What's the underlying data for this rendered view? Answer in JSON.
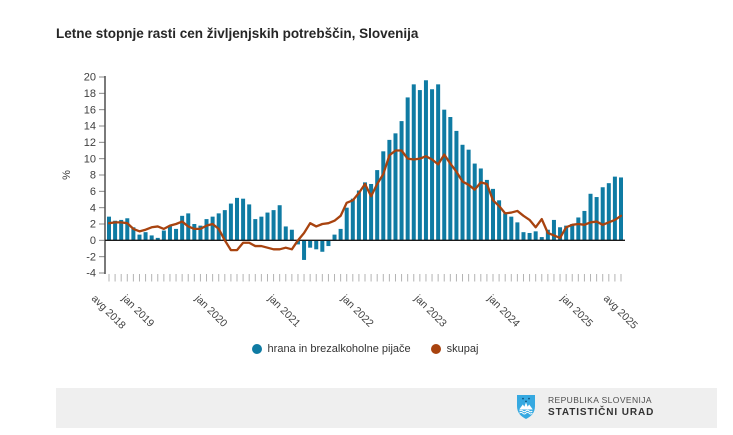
{
  "page": {
    "title": "Letne stopnje rasti cen življenjskih potrebščin, Slovenija"
  },
  "colors": {
    "bars": "#0f7ba3",
    "line": "#a8430f",
    "axis": "#333333",
    "tick": "#b3b3b3",
    "label_text": "#3f3f3f",
    "footer_bg": "#efefef",
    "coat_blue": "#36a9e1"
  },
  "legend": {
    "items": [
      {
        "label": "hrana in brezalkoholne pijače",
        "color": "#0f7ba3"
      },
      {
        "label": "skupaj",
        "color": "#a8430f"
      }
    ]
  },
  "footer": {
    "line1": "REPUBLIKA SLOVENIJA",
    "line2": "STATISTIČNI URAD"
  },
  "chart_data": {
    "type": "bar",
    "title": "Letne stopnje rasti cen življenjskih potrebščin, Slovenija",
    "ylabel": "%",
    "xlabel": "",
    "ylim": [
      -4,
      20
    ],
    "y_ticks": [
      20,
      18,
      16,
      14,
      12,
      10,
      8,
      6,
      4,
      2,
      0,
      -2,
      -4
    ],
    "grid": false,
    "legend_position": "bottom",
    "x_tick_labels": [
      {
        "index": 0,
        "label": "avg 2018"
      },
      {
        "index": 5,
        "label": "jan 2019"
      },
      {
        "index": 17,
        "label": "jan 2020"
      },
      {
        "index": 29,
        "label": "jan 2021"
      },
      {
        "index": 41,
        "label": "jan 2022"
      },
      {
        "index": 53,
        "label": "jan 2023"
      },
      {
        "index": 65,
        "label": "jan 2024"
      },
      {
        "index": 77,
        "label": "jan 2025"
      },
      {
        "index": 84,
        "label": "avg 2025"
      }
    ],
    "categories": [
      "avg 2018",
      "sep 2018",
      "okt 2018",
      "nov 2018",
      "dec 2018",
      "jan 2019",
      "feb 2019",
      "mar 2019",
      "apr 2019",
      "maj 2019",
      "jun 2019",
      "jul 2019",
      "avg 2019",
      "sep 2019",
      "okt 2019",
      "nov 2019",
      "dec 2019",
      "jan 2020",
      "feb 2020",
      "mar 2020",
      "apr 2020",
      "maj 2020",
      "jun 2020",
      "jul 2020",
      "avg 2020",
      "sep 2020",
      "okt 2020",
      "nov 2020",
      "dec 2020",
      "jan 2021",
      "feb 2021",
      "mar 2021",
      "apr 2021",
      "maj 2021",
      "jun 2021",
      "jul 2021",
      "avg 2021",
      "sep 2021",
      "okt 2021",
      "nov 2021",
      "dec 2021",
      "jan 2022",
      "feb 2022",
      "mar 2022",
      "apr 2022",
      "maj 2022",
      "jun 2022",
      "jul 2022",
      "avg 2022",
      "sep 2022",
      "okt 2022",
      "nov 2022",
      "dec 2022",
      "jan 2023",
      "feb 2023",
      "mar 2023",
      "apr 2023",
      "maj 2023",
      "jun 2023",
      "jul 2023",
      "avg 2023",
      "sep 2023",
      "okt 2023",
      "nov 2023",
      "dec 2023",
      "jan 2024",
      "feb 2024",
      "mar 2024",
      "apr 2024",
      "maj 2024",
      "jun 2024",
      "jul 2024",
      "avg 2024",
      "sep 2024",
      "okt 2024",
      "nov 2024",
      "dec 2024",
      "jan 2025",
      "feb 2025",
      "mar 2025",
      "apr 2025",
      "maj 2025",
      "jun 2025",
      "jul 2025",
      "avg 2025"
    ],
    "series": [
      {
        "name": "hrana in brezalkoholne pijače",
        "type": "bar",
        "color": "#0f7ba3",
        "values": [
          2.9,
          2.4,
          2.5,
          2.7,
          1.6,
          0.7,
          1.0,
          0.6,
          0.3,
          1.2,
          1.8,
          1.4,
          3.0,
          3.3,
          2.0,
          1.8,
          2.6,
          2.9,
          3.3,
          3.7,
          4.5,
          5.2,
          5.1,
          4.4,
          2.6,
          2.9,
          3.4,
          3.7,
          4.3,
          1.7,
          1.3,
          -0.5,
          -2.4,
          -0.9,
          -1.1,
          -1.4,
          -0.7,
          0.7,
          1.4,
          4.0,
          5.1,
          6.1,
          7.1,
          6.9,
          8.6,
          10.9,
          12.3,
          13.1,
          14.6,
          17.5,
          19.1,
          18.4,
          19.6,
          18.5,
          19.1,
          16.0,
          15.1,
          13.4,
          11.7,
          11.1,
          9.4,
          8.8,
          7.4,
          6.3,
          4.9,
          3.3,
          2.9,
          2.2,
          1.0,
          0.9,
          1.1,
          0.4,
          1.3,
          2.5,
          1.6,
          1.8,
          2.0,
          2.8,
          3.6,
          5.7,
          5.3,
          6.5,
          7.0,
          7.8,
          7.7
        ]
      },
      {
        "name": "skupaj",
        "type": "line",
        "color": "#a8430f",
        "values": [
          2.1,
          2.2,
          2.2,
          2.1,
          1.4,
          1.1,
          1.3,
          1.6,
          1.7,
          1.4,
          1.8,
          2.0,
          2.3,
          1.7,
          1.4,
          1.4,
          1.8,
          2.0,
          1.4,
          0.0,
          -1.2,
          -1.2,
          -0.3,
          -0.3,
          -0.7,
          -0.7,
          -0.9,
          -1.1,
          -1.1,
          -0.9,
          -1.1,
          0.0,
          0.9,
          2.1,
          1.7,
          2.0,
          2.1,
          2.4,
          3.0,
          4.6,
          4.9,
          5.8,
          6.9,
          5.4,
          6.9,
          8.1,
          10.4,
          11.0,
          11.0,
          10.0,
          9.9,
          10.0,
          10.3,
          9.9,
          9.3,
          10.5,
          9.4,
          8.4,
          7.2,
          6.8,
          6.2,
          7.1,
          6.9,
          4.9,
          4.2,
          3.3,
          3.4,
          3.6,
          3.0,
          2.5,
          1.6,
          2.6,
          0.9,
          0.6,
          0.3,
          1.6,
          1.9,
          2.0,
          1.9,
          2.2,
          2.3,
          1.9,
          2.2,
          2.5,
          3.0
        ]
      }
    ]
  }
}
